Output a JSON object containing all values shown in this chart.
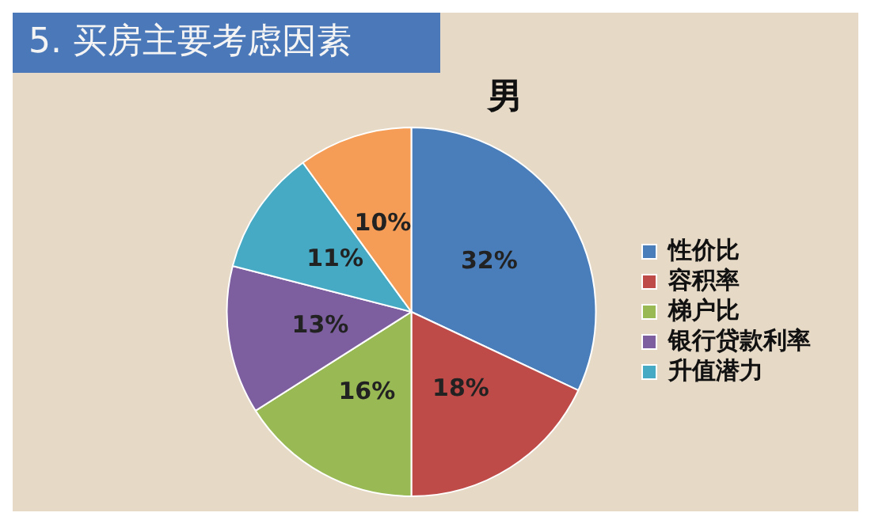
{
  "chart_data": {
    "type": "pie",
    "title": "5. 买房主要考虑因素",
    "subtitle": "男",
    "categories": [
      "性价比",
      "容积率",
      "梯户比",
      "银行贷款利率",
      "升值潜力",
      null
    ],
    "values": [
      32,
      18,
      16,
      13,
      11,
      10
    ],
    "value_labels": [
      "32%",
      "18%",
      "16%",
      "13%",
      "11%",
      "10%"
    ],
    "colors": [
      "#4a7ebb",
      "#be4b48",
      "#98b954",
      "#7d5fa0",
      "#46aac5",
      "#f59d56"
    ],
    "legend": "right"
  }
}
